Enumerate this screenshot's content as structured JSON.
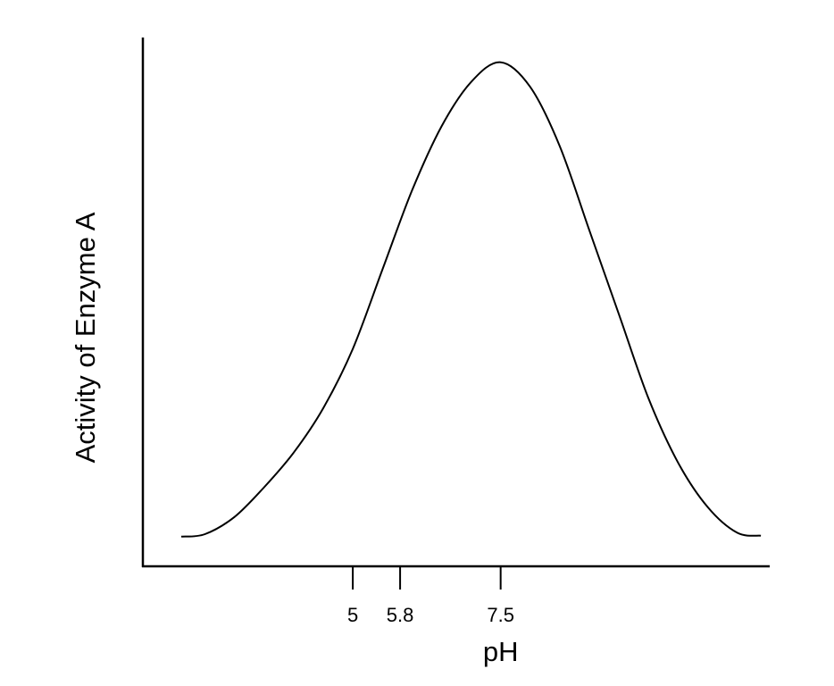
{
  "chart_data": {
    "type": "line",
    "title": "",
    "xlabel": "pH",
    "ylabel": "Activity of Enzyme A",
    "xlim": [
      1.45,
      12.05
    ],
    "ylim": [
      0,
      1.07
    ],
    "x_ticks": [
      5,
      5.8,
      7.5
    ],
    "tick_labels": [
      "5",
      "5.8",
      "7.5"
    ],
    "grid": false,
    "legend": "none",
    "colors": {
      "line": "#000000",
      "axis": "#000000"
    },
    "series": [
      {
        "x": [
          2.1,
          2.5,
          3.0,
          3.5,
          4.0,
          4.5,
          5.0,
          5.5,
          6.0,
          6.5,
          7.0,
          7.5,
          8.0,
          8.5,
          9.0,
          9.5,
          10.0,
          10.5,
          11.0,
          11.5,
          11.9
        ],
        "values": [
          0.06,
          0.065,
          0.1,
          0.16,
          0.23,
          0.32,
          0.44,
          0.6,
          0.76,
          0.89,
          0.98,
          1.02,
          0.97,
          0.85,
          0.68,
          0.51,
          0.34,
          0.21,
          0.12,
          0.068,
          0.062
        ]
      }
    ]
  }
}
